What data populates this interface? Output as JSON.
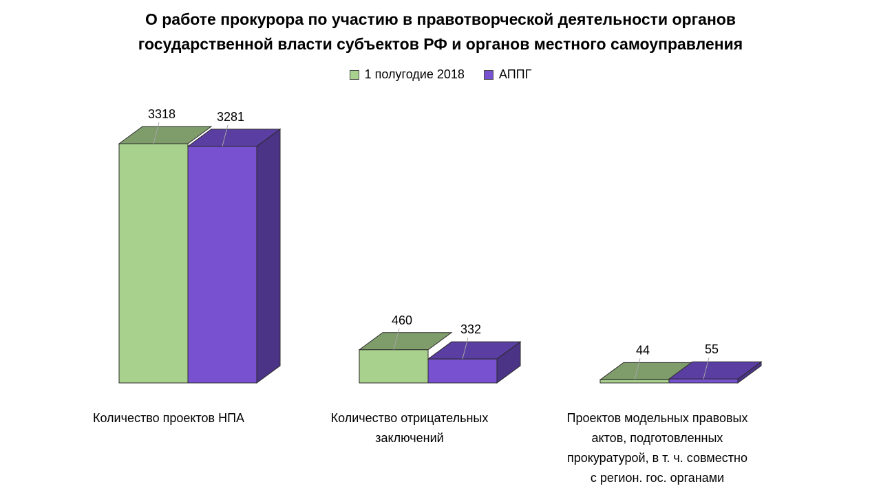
{
  "chart_data": {
    "type": "bar",
    "title": "О работе прокурора по участию в правотворческой деятельности органов\nгосударственной власти субъектов РФ и органов местного самоуправления",
    "categories": [
      "Количество проектов НПА",
      "Количество отрицательных\nзаключений",
      "Проектов модельных правовых\nактов, подготовленных\nпрокуратурой, в т. ч. совместно\nс регион. гос. органами"
    ],
    "series": [
      {
        "name": "1 полугодие 2018",
        "values": [
          3318,
          460,
          44
        ],
        "color": "#a9d18e",
        "top_color": "#7f9c6b"
      },
      {
        "name": "АППГ",
        "values": [
          3281,
          332,
          55
        ],
        "color": "#7751cf",
        "top_color": "#5a3ea2",
        "side_color": "#4b3385"
      }
    ],
    "legend_position": "top",
    "grid": false,
    "ylim": [
      0,
      3318
    ]
  }
}
